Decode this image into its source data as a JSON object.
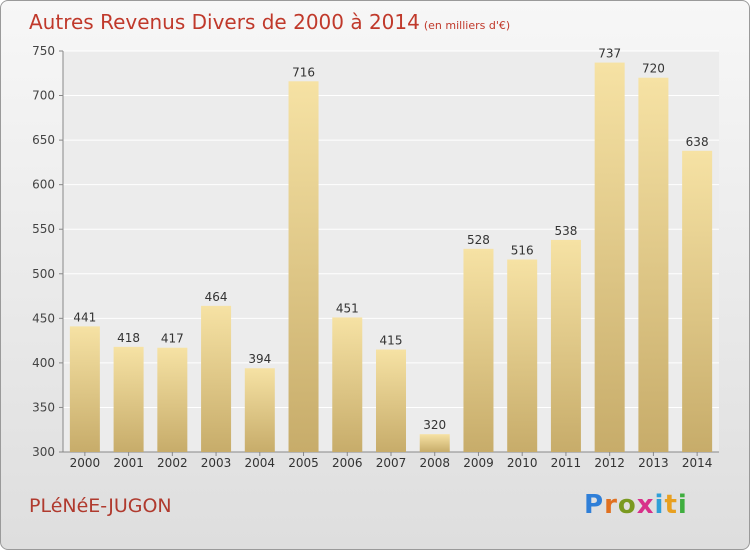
{
  "title": "Autres Revenus Divers de 2000 à 2014",
  "unit": "(en milliers d'€)",
  "place": "PLéNéE-JUGON",
  "logo": {
    "text": "Proxiti",
    "colors": [
      "#2f7fd8",
      "#e07020",
      "#7a9a20",
      "#d8308a",
      "#2f9fd8",
      "#e8a020",
      "#3fae3f"
    ]
  },
  "colors": {
    "bar_light": "#f6e2a4",
    "bar_dark": "#c7ac6a",
    "title": "#c0392b"
  },
  "chart_data": {
    "type": "bar",
    "categories": [
      "2000",
      "2001",
      "2002",
      "2003",
      "2004",
      "2005",
      "2006",
      "2007",
      "2008",
      "2009",
      "2010",
      "2011",
      "2012",
      "2013",
      "2014"
    ],
    "values": [
      441,
      418,
      417,
      464,
      394,
      716,
      451,
      415,
      320,
      528,
      516,
      538,
      737,
      720,
      638
    ],
    "ylim": [
      300,
      750
    ],
    "yticks": [
      300,
      350,
      400,
      450,
      500,
      550,
      600,
      650,
      700,
      750
    ],
    "grid": true
  }
}
